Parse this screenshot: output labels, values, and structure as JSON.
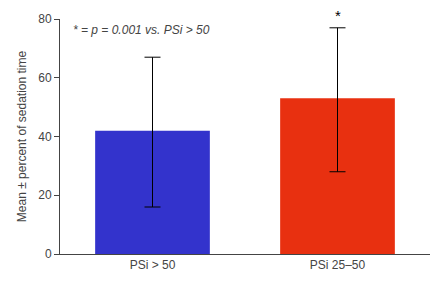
{
  "chart_data": {
    "type": "bar",
    "categories": [
      "PSi > 50",
      "PSi 25–50"
    ],
    "values": [
      42,
      53
    ],
    "error_lower": [
      26,
      25
    ],
    "error_upper": [
      25,
      24
    ],
    "colors": [
      "#3333cc",
      "#e83010"
    ],
    "ylabel": "Mean ± percent of sedation time",
    "annotations": [
      {
        "text": "*",
        "category": "PSi 25–50"
      },
      {
        "text": "* = p = 0.001 vs. PSi > 50"
      }
    ],
    "ylim": [
      0,
      80
    ],
    "yticks": [
      0,
      20,
      40,
      60,
      80
    ],
    "grid": false
  }
}
